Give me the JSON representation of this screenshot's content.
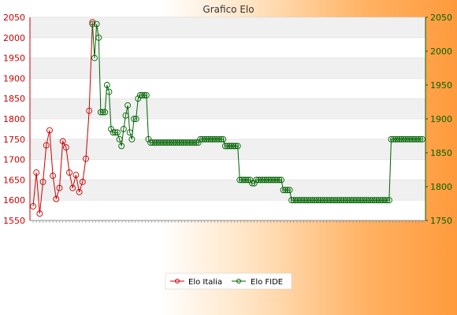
{
  "chart_data": {
    "type": "line",
    "title": "Grafico Elo",
    "y_left": {
      "ylim": [
        1550,
        2050
      ],
      "ticks": [
        1550,
        1600,
        1650,
        1700,
        1750,
        1800,
        1850,
        1900,
        1950,
        2000,
        2050
      ],
      "color": "#cc0000"
    },
    "y_right": {
      "ylim": [
        1750,
        2050
      ],
      "ticks": [
        1750,
        1800,
        1850,
        1900,
        1950,
        2000,
        2050
      ],
      "color": "#006400"
    },
    "grid": true,
    "legend_placement": "bottom-center",
    "n_points": 119,
    "x_tick_labels_note": "illegible",
    "series": [
      {
        "name": "Elo Italia",
        "color": "#cc0000",
        "axis": "left",
        "x": [
          0,
          1,
          2,
          3,
          4,
          5,
          6,
          7,
          8,
          9,
          10,
          11,
          12,
          13,
          14,
          15,
          16,
          17,
          18
        ],
        "values": [
          1585,
          1668,
          1567,
          1645,
          1735,
          1772,
          1660,
          1603,
          1630,
          1745,
          1730,
          1668,
          1630,
          1662,
          1620,
          1645,
          1702,
          1820,
          2038
        ]
      },
      {
        "name": "Elo FIDE",
        "color": "#006400",
        "axis": "right",
        "x_start": 18,
        "values": [
          2040,
          1990,
          2040,
          2020,
          1910,
          1910,
          1910,
          1950,
          1940,
          1885,
          1880,
          1880,
          1880,
          1870,
          1860,
          1885,
          1905,
          1920,
          1880,
          1870,
          1900,
          1900,
          1930,
          1935,
          1935,
          1935,
          1935,
          1870,
          1865,
          1865,
          1865,
          1865,
          1865,
          1865,
          1865,
          1865,
          1865,
          1865,
          1865,
          1865,
          1865,
          1865,
          1865,
          1865,
          1865,
          1865,
          1865,
          1865,
          1865,
          1865,
          1865,
          1865,
          1870,
          1870,
          1870,
          1870,
          1870,
          1870,
          1870,
          1870,
          1870,
          1870,
          1870,
          1870,
          1860,
          1860,
          1860,
          1860,
          1860,
          1860,
          1860,
          1810,
          1810,
          1810,
          1810,
          1810,
          1810,
          1805,
          1805,
          1810,
          1810,
          1810,
          1810,
          1810,
          1810,
          1810,
          1810,
          1810,
          1810,
          1810,
          1810,
          1810,
          1795,
          1795,
          1795,
          1795,
          1780,
          1780,
          1780,
          1780,
          1780,
          1780,
          1780,
          1780,
          1780,
          1780,
          1780,
          1780,
          1780,
          1780,
          1780,
          1780,
          1780,
          1780,
          1780,
          1780,
          1780,
          1780,
          1780,
          1780,
          1780,
          1780,
          1780,
          1780,
          1780,
          1780,
          1780,
          1780,
          1780,
          1780,
          1780,
          1780,
          1780,
          1780,
          1780,
          1780,
          1780,
          1780,
          1780,
          1780,
          1780,
          1780,
          1780,
          1780,
          1870,
          1870,
          1870,
          1870,
          1870,
          1870,
          1870,
          1870,
          1870,
          1870,
          1870,
          1870,
          1870,
          1870,
          1870,
          1870
        ]
      }
    ]
  }
}
